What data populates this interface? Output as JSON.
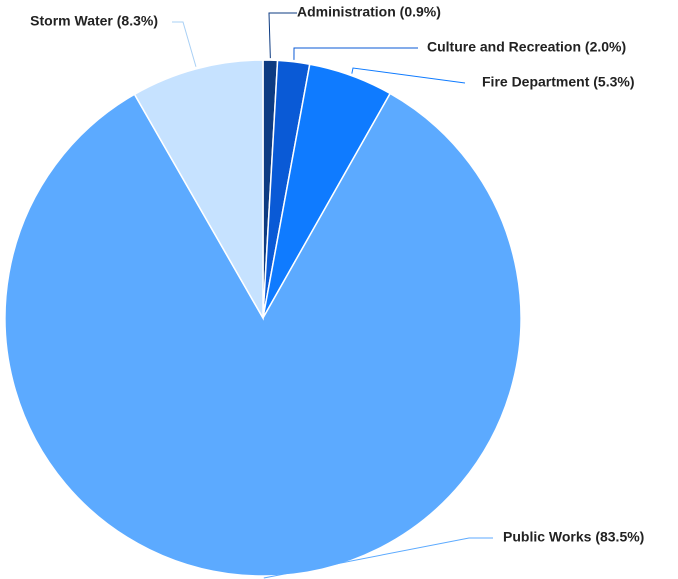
{
  "chart_data": {
    "type": "pie",
    "title": "",
    "legend": "none",
    "slices": [
      {
        "name": "Administration",
        "value": 0.9,
        "label": "Administration (0.9%)",
        "color": "#0d3b82"
      },
      {
        "name": "Culture and Recreation",
        "value": 2.0,
        "label": "Culture and Recreation (2.0%)",
        "color": "#0a5ad6"
      },
      {
        "name": "Fire Department",
        "value": 5.3,
        "label": "Fire Department (5.3%)",
        "color": "#0f7bff"
      },
      {
        "name": "Public Works",
        "value": 83.5,
        "label": "Public Works (83.5%)",
        "color": "#5caaff"
      },
      {
        "name": "Storm Water",
        "value": 8.3,
        "label": "Storm Water (8.3%)",
        "color": "#c6e2ff"
      }
    ]
  }
}
